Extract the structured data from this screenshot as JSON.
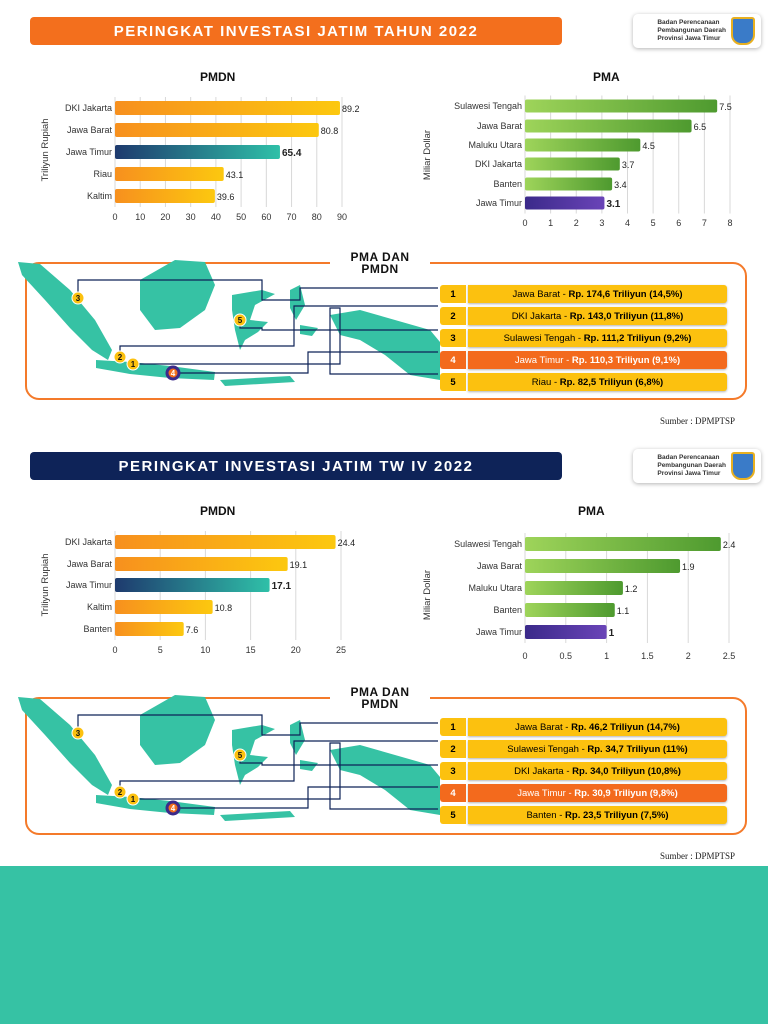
{
  "sections": [
    {
      "title": "PERINGKAT INVESTASI JATIM TAHUN 2022",
      "banner_color": "#f36f1d",
      "logo_text": [
        "Badan Perencanaan",
        "Pembangunan Daerah",
        "Provinsi Jawa Timur"
      ],
      "map_title": [
        "PMA DAN",
        "PMDN"
      ],
      "ranks": [
        {
          "n": "1",
          "name": "Jawa Barat - ",
          "value": "Rp. 174,6 Triliyun (14,5%)"
        },
        {
          "n": "2",
          "name": "DKI Jakarta - ",
          "value": "Rp. 143,0 Triliyun (11,8%)"
        },
        {
          "n": "3",
          "name": "Sulawesi Tengah - ",
          "value": "Rp. 111,2 Triliyun (9,2%)"
        },
        {
          "n": "4",
          "name": "Jawa Timur - ",
          "value": "Rp. 110,3 Triliyun (9,1%)",
          "highlight": true
        },
        {
          "n": "5",
          "name": "Riau - ",
          "value": "Rp. 82,5 Triliyun (6,8%)"
        }
      ],
      "map_markers": [
        "3",
        "2",
        "1",
        "4",
        "5"
      ],
      "source": "Sumber : DPMPTSP"
    },
    {
      "title": "PERINGKAT INVESTASI JATIM TW IV 2022",
      "banner_color": "#0e2358",
      "logo_text": [
        "Badan Perencanaan",
        "Pembangunan Daerah",
        "Provinsi Jawa Timur"
      ],
      "map_title": [
        "PMA DAN",
        "PMDN"
      ],
      "ranks": [
        {
          "n": "1",
          "name": "Jawa Barat - ",
          "value": "Rp. 46,2 Triliyun (14,7%)"
        },
        {
          "n": "2",
          "name": "Sulawesi Tengah - ",
          "value": "Rp. 34,7 Triliyun (11%)"
        },
        {
          "n": "3",
          "name": "DKI Jakarta - ",
          "value": "Rp. 34,0 Triliyun (10,8%)"
        },
        {
          "n": "4",
          "name": "Jawa Timur - ",
          "value": "Rp. 30,9 Triliyun (9,8%)",
          "highlight": true
        },
        {
          "n": "5",
          "name": "Banten - ",
          "value": "Rp. 23,5 Triliyun (7,5%)"
        }
      ],
      "map_markers": [
        "3",
        "2",
        "1",
        "4",
        "5"
      ],
      "source": "Sumber : DPMPTSP"
    }
  ],
  "chart_data": [
    {
      "type": "bar",
      "orientation": "horizontal",
      "title": "PMDN",
      "ylabel": "Triliyun Rupiah",
      "categories": [
        "DKI Jakarta",
        "Jawa Barat",
        "Jawa Timur",
        "Riau",
        "Kaltim"
      ],
      "values": [
        89.2,
        80.8,
        65.4,
        43.1,
        39.6
      ],
      "labels": [
        "89.2",
        "80.8",
        "65.4",
        "43.1",
        "39.6"
      ],
      "xlim": [
        0,
        90
      ],
      "ticks": [
        "0",
        "10",
        "20",
        "30",
        "40",
        "50",
        "60",
        "70",
        "80",
        "90"
      ],
      "grid": true,
      "highlight": "Jawa Timur",
      "bar_color": "#f7941d",
      "highlight_color": "#1e3a6e"
    },
    {
      "type": "bar",
      "orientation": "horizontal",
      "title": "PMA",
      "ylabel": "Miliar Dollar",
      "categories": [
        "Sulawesi Tengah",
        "Jawa Barat",
        "Maluku Utara",
        "DKI Jakarta",
        "Banten",
        "Jawa Timur"
      ],
      "values": [
        7.5,
        6.5,
        4.5,
        3.7,
        3.4,
        3.1
      ],
      "labels": [
        "7.5",
        "6.5",
        "4.5",
        "3.7",
        "3.4",
        "3.1"
      ],
      "xlim": [
        0,
        8
      ],
      "ticks": [
        "0",
        "1",
        "2",
        "3",
        "4",
        "5",
        "6",
        "7",
        "8"
      ],
      "grid": true,
      "highlight": "Jawa Timur",
      "bar_color": "#6ab43e",
      "highlight_color": "#3b2a8a"
    },
    {
      "type": "bar",
      "orientation": "horizontal",
      "title": "PMDN",
      "ylabel": "Triliyun Rupiah",
      "categories": [
        "DKI Jakarta",
        "Jawa Barat",
        "Jawa Timur",
        "Kaltim",
        "Banten"
      ],
      "values": [
        24.4,
        19.1,
        17.1,
        10.8,
        7.6
      ],
      "labels": [
        "24.4",
        "19.1",
        "17.1",
        "10.8",
        "7.6"
      ],
      "xlim": [
        0,
        25
      ],
      "ticks": [
        "0",
        "5",
        "10",
        "15",
        "20",
        "25"
      ],
      "grid": true,
      "highlight": "Jawa Timur",
      "bar_color": "#f7941d",
      "highlight_color": "#1e3a6e"
    },
    {
      "type": "bar",
      "orientation": "horizontal",
      "title": "PMA",
      "ylabel": "Miliar Dollar",
      "categories": [
        "Sulawesi Tengah",
        "Jawa Barat",
        "Maluku Utara",
        "Banten",
        "Jawa Timur"
      ],
      "values": [
        2.4,
        1.9,
        1.2,
        1.1,
        1
      ],
      "labels": [
        "2.4",
        "1.9",
        "1.2",
        "1.1",
        "1"
      ],
      "xlim": [
        0,
        2.5
      ],
      "ticks": [
        "0",
        "0.5",
        "1",
        "1.5",
        "2",
        "2.5"
      ],
      "grid": true,
      "highlight": "Jawa Timur",
      "bar_color": "#6ab43e",
      "highlight_color": "#3b2a8a"
    }
  ],
  "colors": {
    "teal": "#36c2a4",
    "orange": "#f36f1d",
    "navy": "#0e2358"
  }
}
